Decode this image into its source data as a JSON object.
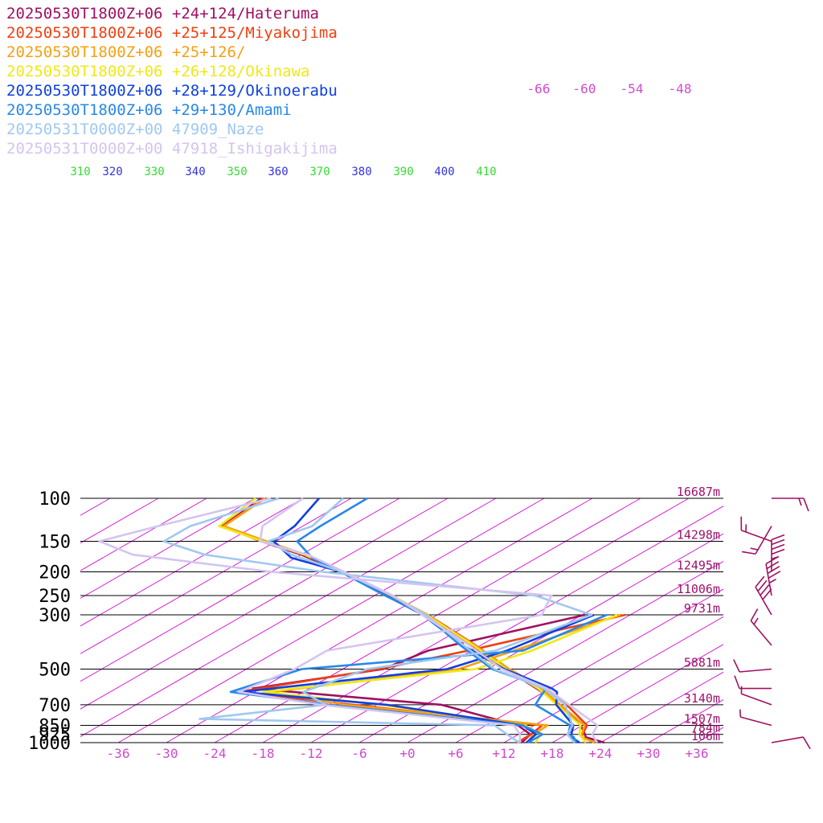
{
  "chart_data": {
    "type": "line",
    "title": "",
    "xlabel": "",
    "ylabel": "",
    "y_scale": "log-pressure",
    "ylim": [
      1000,
      100
    ],
    "xlim": [
      -40,
      40
    ],
    "legend_placement": "top-left",
    "pressure_levels": [
      {
        "p": 100,
        "label": "100",
        "height": "16687m"
      },
      {
        "p": 150,
        "label": "150",
        "height": "14298m"
      },
      {
        "p": 200,
        "label": "200",
        "height": "12495m"
      },
      {
        "p": 250,
        "label": "250",
        "height": "11006m"
      },
      {
        "p": 300,
        "label": "300",
        "height": "9731m"
      },
      {
        "p": 500,
        "label": "500",
        "height": "5881m"
      },
      {
        "p": 700,
        "label": "700",
        "height": "3140m"
      },
      {
        "p": 850,
        "label": "850",
        "height": "1507m"
      },
      {
        "p": 925,
        "label": "925",
        "height": "784m"
      },
      {
        "p": 1000,
        "label": "1000",
        "height": "106m"
      }
    ],
    "temperature_ticks": [
      {
        "t": -36,
        "label": "-36"
      },
      {
        "t": -30,
        "label": "-30"
      },
      {
        "t": -24,
        "label": "-24"
      },
      {
        "t": -18,
        "label": "-18"
      },
      {
        "t": -12,
        "label": "-12"
      },
      {
        "t": -6,
        "label": "-6"
      },
      {
        "t": 0,
        "label": "+0"
      },
      {
        "t": 6,
        "label": "+6"
      },
      {
        "t": 12,
        "label": "+12"
      },
      {
        "t": 18,
        "label": "+18"
      },
      {
        "t": 24,
        "label": "+24"
      },
      {
        "t": 30,
        "label": "+30"
      },
      {
        "t": 36,
        "label": "+36"
      }
    ],
    "upper_temperature_labels": [
      "-66",
      "-60",
      "-54",
      "-48"
    ],
    "theta_labels": [
      "310",
      "320",
      "330",
      "340",
      "350",
      "360",
      "370",
      "380",
      "390",
      "400",
      "410"
    ],
    "colors": {
      "isotherm": "#d61ed6",
      "dry_adiabat": "#3232dc",
      "moist_adiabat": "#32dc32",
      "isobar": "#000000",
      "height_label": "#a0106e",
      "axis_label": "#d04ad0"
    },
    "series": [
      {
        "name": "20250530T1800Z+06 +24+124/Hateruma",
        "color": "#a01060",
        "temperature": [
          [
            1000,
            24.5
          ],
          [
            950,
            21
          ],
          [
            925,
            20.3
          ],
          [
            850,
            17.8
          ],
          [
            700,
            10.8
          ],
          [
            600,
            4.3
          ],
          [
            500,
            -3.7
          ],
          [
            400,
            -13.2
          ],
          [
            300,
            -25.5
          ],
          [
            250,
            -34.1
          ],
          [
            200,
            -45.3
          ],
          [
            170,
            -54
          ],
          [
            150,
            -61.9
          ],
          [
            130,
            -70
          ],
          [
            100,
            -71.2
          ]
        ],
        "dewpoint": [
          [
            1000,
            14.2
          ],
          [
            925,
            13.5
          ],
          [
            850,
            10
          ],
          [
            700,
            -4
          ],
          [
            600,
            -31
          ],
          [
            500,
            -19
          ],
          [
            420,
            -17.4
          ],
          [
            300,
            -5.6
          ]
        ]
      },
      {
        "name": "20250530T1800Z+06 +25+125/Miyakojima",
        "color": "#f04010",
        "temperature": [
          [
            1000,
            23.3
          ],
          [
            950,
            20.5
          ],
          [
            925,
            20
          ],
          [
            850,
            18.6
          ],
          [
            700,
            11.6
          ],
          [
            600,
            5.2
          ],
          [
            500,
            -3.3
          ],
          [
            400,
            -12.6
          ],
          [
            300,
            -25.2
          ],
          [
            250,
            -33.9
          ],
          [
            200,
            -45.3
          ],
          [
            170,
            -53.6
          ],
          [
            150,
            -61.4
          ],
          [
            130,
            -69.9
          ],
          [
            100,
            -70.9
          ]
        ],
        "dewpoint": [
          [
            1000,
            13.6
          ],
          [
            925,
            13.6
          ],
          [
            850,
            13
          ],
          [
            700,
            -15
          ],
          [
            620,
            -32
          ],
          [
            500,
            -19.5
          ],
          [
            420,
            -12.4
          ],
          [
            300,
            -0.6
          ]
        ]
      },
      {
        "name": "20250530T1800Z+06 +25+126/",
        "color": "#f8a010",
        "temperature": [
          [
            1000,
            23.3
          ],
          [
            950,
            20.5
          ],
          [
            925,
            19.9
          ],
          [
            850,
            18.3
          ],
          [
            700,
            10.8
          ],
          [
            600,
            4.9
          ],
          [
            500,
            -3.3
          ],
          [
            400,
            -12.7
          ],
          [
            300,
            -25.5
          ],
          [
            250,
            -34
          ],
          [
            200,
            -45.4
          ],
          [
            170,
            -53.5
          ],
          [
            150,
            -61.2
          ],
          [
            130,
            -69.8
          ],
          [
            100,
            -70.7
          ]
        ],
        "dewpoint": [
          [
            1000,
            14.9
          ],
          [
            925,
            13.9
          ],
          [
            850,
            13.7
          ],
          [
            700,
            -16
          ],
          [
            620,
            -28
          ],
          [
            500,
            -9.6
          ],
          [
            420,
            -6.7
          ],
          [
            300,
            -1.2
          ]
        ]
      },
      {
        "name": "20250530T1800Z+06 +26+128/Okinawa",
        "color": "#f0e818",
        "temperature": [
          [
            1000,
            22.2
          ],
          [
            950,
            20.5
          ],
          [
            925,
            19.6
          ],
          [
            850,
            17.8
          ],
          [
            700,
            10.4
          ],
          [
            600,
            4.5
          ],
          [
            500,
            -3.7
          ],
          [
            400,
            -12.9
          ],
          [
            300,
            -25.3
          ],
          [
            250,
            -33.8
          ],
          [
            200,
            -45
          ],
          [
            170,
            -53.6
          ],
          [
            150,
            -61.7
          ],
          [
            130,
            -70.4
          ],
          [
            100,
            -71.9
          ]
        ],
        "dewpoint": [
          [
            1000,
            15.9
          ],
          [
            925,
            14.8
          ],
          [
            850,
            10.9
          ],
          [
            700,
            -11.4
          ],
          [
            620,
            -29
          ],
          [
            500,
            -7.5
          ],
          [
            420,
            -4.5
          ],
          [
            300,
            -1.6
          ]
        ]
      },
      {
        "name": "20250530T1800Z+06 +28+129/Okinoerabu",
        "color": "#1040e0",
        "temperature": [
          [
            1000,
            21.4
          ],
          [
            950,
            19.2
          ],
          [
            925,
            18.6
          ],
          [
            850,
            16.9
          ],
          [
            700,
            10.3
          ],
          [
            620,
            7.6
          ],
          [
            600,
            6.2
          ],
          [
            500,
            -3.9
          ],
          [
            400,
            -14.2
          ],
          [
            330,
            -22
          ],
          [
            300,
            -25.8
          ],
          [
            250,
            -34.6
          ],
          [
            200,
            -45.3
          ],
          [
            175,
            -54.6
          ],
          [
            150,
            -60.3
          ],
          [
            130,
            -61
          ],
          [
            100,
            -64
          ]
        ],
        "dewpoint": [
          [
            1000,
            14.8
          ],
          [
            925,
            14.2
          ],
          [
            850,
            10.6
          ],
          [
            700,
            -10.8
          ],
          [
            620,
            -31.7
          ],
          [
            500,
            -11
          ],
          [
            420,
            -7.6
          ],
          [
            300,
            -4.5
          ]
        ]
      },
      {
        "name": "20250530T1800Z+06 +29+130/Amami",
        "color": "#2888e8",
        "temperature": [
          [
            1000,
            21
          ],
          [
            950,
            19.5
          ],
          [
            925,
            18.2
          ],
          [
            850,
            16.5
          ],
          [
            700,
            7.7
          ],
          [
            650,
            6.6
          ],
          [
            600,
            5.5
          ],
          [
            500,
            -5.4
          ],
          [
            400,
            -14.5
          ],
          [
            300,
            -25.6
          ],
          [
            250,
            -34.7
          ],
          [
            200,
            -45.4
          ],
          [
            175,
            -52
          ],
          [
            150,
            -57.4
          ],
          [
            130,
            -57.8
          ],
          [
            100,
            -58
          ]
        ],
        "dewpoint": [
          [
            1000,
            15
          ],
          [
            925,
            15
          ],
          [
            850,
            10.5
          ],
          [
            700,
            -18
          ],
          [
            620,
            -33
          ],
          [
            500,
            -29.1
          ],
          [
            420,
            -5.6
          ],
          [
            300,
            -2.9
          ]
        ]
      },
      {
        "name": "20250531T0000Z+00 47909_Naze",
        "color": "#a0c8f0",
        "temperature": [
          [
            1000,
            20.8
          ],
          [
            925,
            18.1
          ],
          [
            850,
            16.8
          ],
          [
            700,
            11.4
          ],
          [
            600,
            5.2
          ],
          [
            500,
            -5.1
          ],
          [
            400,
            -14.1
          ],
          [
            300,
            -25.4
          ],
          [
            250,
            -33.9
          ],
          [
            200,
            -45.2
          ],
          [
            170,
            -55.2
          ],
          [
            150,
            -61
          ],
          [
            130,
            -58.8
          ],
          [
            100,
            -61
          ]
        ],
        "dewpoint": [
          [
            1000,
            13.9
          ],
          [
            925,
            10.6
          ],
          [
            850,
            7.1
          ],
          [
            800,
            -31
          ],
          [
            700,
            -18.4
          ],
          [
            620,
            -24
          ],
          [
            500,
            -21
          ],
          [
            420,
            -9
          ],
          [
            300,
            -4.8
          ],
          [
            250,
            -16
          ],
          [
            200,
            -47.6
          ],
          [
            170,
            -66
          ],
          [
            150,
            -74
          ],
          [
            130,
            -74
          ],
          [
            100,
            -69
          ]
        ]
      },
      {
        "name": "20250531T0000Z+00 47918_Ishigakijima",
        "color": "#d4c4f0",
        "temperature": [
          [
            1000,
            23.6
          ],
          [
            925,
            21.2
          ],
          [
            850,
            19.9
          ],
          [
            700,
            11.9
          ],
          [
            600,
            5.6
          ],
          [
            500,
            -4.2
          ],
          [
            400,
            -13.4
          ],
          [
            300,
            -25.9
          ],
          [
            250,
            -33.7
          ],
          [
            200,
            -44.9
          ],
          [
            170,
            -53.2
          ],
          [
            150,
            -62
          ],
          [
            130,
            -65
          ],
          [
            100,
            -66
          ]
        ],
        "dewpoint": [
          [
            1000,
            14
          ],
          [
            925,
            12.2
          ],
          [
            850,
            9.5
          ],
          [
            700,
            -19
          ],
          [
            620,
            -32
          ],
          [
            500,
            -30
          ],
          [
            420,
            -30
          ],
          [
            300,
            -11
          ],
          [
            250,
            -14
          ],
          [
            200,
            -54
          ],
          [
            170,
            -75
          ],
          [
            150,
            -82
          ],
          [
            130,
            -78
          ],
          [
            100,
            -70
          ]
        ]
      }
    ],
    "wind_barbs": [
      {
        "p": 100,
        "speed_kt": 15,
        "dir_deg": 90
      },
      {
        "p": 130,
        "speed_kt": 15,
        "dir_deg": 210
      },
      {
        "p": 150,
        "speed_kt": 15,
        "dir_deg": 290
      },
      {
        "p": 200,
        "speed_kt": 45,
        "dir_deg": 0
      },
      {
        "p": 250,
        "speed_kt": 45,
        "dir_deg": 350
      },
      {
        "p": 300,
        "speed_kt": 40,
        "dir_deg": 330
      },
      {
        "p": 400,
        "speed_kt": 15,
        "dir_deg": 320
      },
      {
        "p": 500,
        "speed_kt": 10,
        "dir_deg": 265
      },
      {
        "p": 600,
        "speed_kt": 10,
        "dir_deg": 270
      },
      {
        "p": 700,
        "speed_kt": 5,
        "dir_deg": 290
      },
      {
        "p": 850,
        "speed_kt": 5,
        "dir_deg": 285
      },
      {
        "p": 1000,
        "speed_kt": 10,
        "dir_deg": 80
      }
    ]
  }
}
